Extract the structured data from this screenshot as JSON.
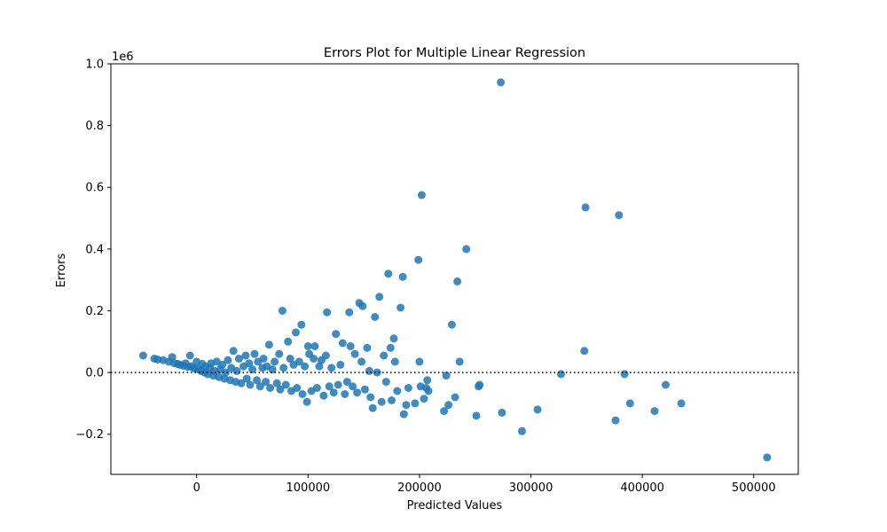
{
  "chart_data": {
    "type": "scatter",
    "title": "Errors Plot for Multiple Linear Regression",
    "xlabel": "Predicted Values",
    "ylabel": "Errors",
    "y_offset_label": "1e6",
    "xlim": [
      -77000,
      540000
    ],
    "ylim": [
      -0.33,
      1.0
    ],
    "x_ticks": [
      0,
      100000,
      200000,
      300000,
      400000,
      500000
    ],
    "x_tick_labels": [
      "0",
      "100000",
      "200000",
      "300000",
      "400000",
      "500000"
    ],
    "y_ticks": [
      -0.2,
      0.0,
      0.2,
      0.4,
      0.6,
      0.8,
      1.0
    ],
    "y_tick_labels": [
      "−0.2",
      "0.0",
      "0.2",
      "0.4",
      "0.6",
      "0.8",
      "1.0"
    ],
    "y_scale_note": "y values in units of 1e6",
    "grid": false,
    "reference_line": {
      "y": 0.0,
      "style": "dotted",
      "color": "#000000"
    },
    "point_color": "#1f77b4",
    "series": [
      {
        "points": [
          [
            -48000,
            0.055
          ],
          [
            -38000,
            0.045
          ],
          [
            -35000,
            0.042
          ],
          [
            -30000,
            0.04
          ],
          [
            -25000,
            0.035
          ],
          [
            -22000,
            0.05
          ],
          [
            -20000,
            0.03
          ],
          [
            -17000,
            0.028
          ],
          [
            -15000,
            0.025
          ],
          [
            -12000,
            0.022
          ],
          [
            -10000,
            0.03
          ],
          [
            -8000,
            0.018
          ],
          [
            -6000,
            0.055
          ],
          [
            -5000,
            0.02
          ],
          [
            -3000,
            0.015
          ],
          [
            -1000,
            0.012
          ],
          [
            0,
            0.035
          ],
          [
            2000,
            0.01
          ],
          [
            4000,
            0.005
          ],
          [
            5000,
            0.028
          ],
          [
            7000,
            0.0
          ],
          [
            8000,
            0.02
          ],
          [
            10000,
            -0.005
          ],
          [
            12000,
            0.015
          ],
          [
            13000,
            0.03
          ],
          [
            15000,
            -0.01
          ],
          [
            16000,
            0.005
          ],
          [
            18000,
            0.035
          ],
          [
            20000,
            -0.015
          ],
          [
            21000,
            0.01
          ],
          [
            23000,
            0.025
          ],
          [
            25000,
            -0.02
          ],
          [
            26000,
            0.0
          ],
          [
            28000,
            0.04
          ],
          [
            30000,
            -0.025
          ],
          [
            31000,
            0.015
          ],
          [
            33000,
            0.07
          ],
          [
            35000,
            -0.03
          ],
          [
            36000,
            0.005
          ],
          [
            38000,
            0.045
          ],
          [
            40000,
            -0.035
          ],
          [
            42000,
            0.02
          ],
          [
            44000,
            0.055
          ],
          [
            45000,
            -0.02
          ],
          [
            47000,
            0.03
          ],
          [
            48000,
            -0.04
          ],
          [
            50000,
            0.01
          ],
          [
            52000,
            0.06
          ],
          [
            54000,
            -0.025
          ],
          [
            55000,
            0.035
          ],
          [
            57000,
            -0.045
          ],
          [
            59000,
            0.015
          ],
          [
            60000,
            0.045
          ],
          [
            62000,
            -0.03
          ],
          [
            63000,
            0.02
          ],
          [
            65000,
            0.09
          ],
          [
            66000,
            -0.05
          ],
          [
            68000,
            0.01
          ],
          [
            70000,
            0.035
          ],
          [
            72000,
            -0.035
          ],
          [
            74000,
            0.06
          ],
          [
            75000,
            -0.055
          ],
          [
            77000,
            0.2
          ],
          [
            78000,
            0.015
          ],
          [
            80000,
            -0.04
          ],
          [
            82000,
            0.1
          ],
          [
            84000,
            0.045
          ],
          [
            85000,
            -0.06
          ],
          [
            87000,
            0.025
          ],
          [
            89000,
            0.13
          ],
          [
            90000,
            -0.05
          ],
          [
            92000,
            0.035
          ],
          [
            94000,
            0.155
          ],
          [
            95000,
            -0.07
          ],
          [
            97000,
            0.02
          ],
          [
            99000,
            -0.095
          ],
          [
            100000,
            0.085
          ],
          [
            101000,
            0.06
          ],
          [
            103000,
            -0.06
          ],
          [
            105000,
            0.045
          ],
          [
            106000,
            0.085
          ],
          [
            108000,
            -0.05
          ],
          [
            110000,
            0.02
          ],
          [
            112000,
            0.04
          ],
          [
            114000,
            -0.075
          ],
          [
            116000,
            0.055
          ],
          [
            117000,
            0.195
          ],
          [
            119000,
            -0.045
          ],
          [
            121000,
            0.015
          ],
          [
            123000,
            -0.065
          ],
          [
            125000,
            0.125
          ],
          [
            127000,
            -0.04
          ],
          [
            129000,
            0.025
          ],
          [
            131000,
            0.095
          ],
          [
            133000,
            -0.07
          ],
          [
            135000,
            -0.03
          ],
          [
            137000,
            0.195
          ],
          [
            138000,
            0.085
          ],
          [
            140000,
            -0.045
          ],
          [
            142000,
            0.06
          ],
          [
            144000,
            -0.065
          ],
          [
            146000,
            0.225
          ],
          [
            148000,
            0.035
          ],
          [
            149000,
            0.215
          ],
          [
            151000,
            -0.055
          ],
          [
            153000,
            0.08
          ],
          [
            155000,
            0.005
          ],
          [
            156000,
            -0.08
          ],
          [
            158000,
            -0.115
          ],
          [
            160000,
            0.18
          ],
          [
            162000,
            0.0
          ],
          [
            164000,
            0.245
          ],
          [
            166000,
            -0.095
          ],
          [
            168000,
            0.055
          ],
          [
            170000,
            -0.03
          ],
          [
            172000,
            0.32
          ],
          [
            174000,
            0.08
          ],
          [
            175000,
            -0.09
          ],
          [
            177000,
            0.11
          ],
          [
            178000,
            0.035
          ],
          [
            180000,
            -0.06
          ],
          [
            183000,
            0.21
          ],
          [
            185000,
            0.31
          ],
          [
            186000,
            -0.135
          ],
          [
            188000,
            -0.105
          ],
          [
            190000,
            -0.05
          ],
          [
            196000,
            -0.1
          ],
          [
            199000,
            0.365
          ],
          [
            200000,
            0.035
          ],
          [
            201000,
            -0.045
          ],
          [
            202000,
            0.575
          ],
          [
            204000,
            -0.085
          ],
          [
            206000,
            -0.05
          ],
          [
            207000,
            -0.025
          ],
          [
            208000,
            -0.06
          ],
          [
            222000,
            -0.125
          ],
          [
            224000,
            -0.01
          ],
          [
            226000,
            -0.105
          ],
          [
            229000,
            0.155
          ],
          [
            232000,
            -0.08
          ],
          [
            234000,
            0.295
          ],
          [
            236000,
            0.035
          ],
          [
            242000,
            0.4
          ],
          [
            251000,
            -0.14
          ],
          [
            253000,
            -0.045
          ],
          [
            254000,
            -0.04
          ],
          [
            273000,
            0.94
          ],
          [
            274000,
            -0.13
          ],
          [
            292000,
            -0.19
          ],
          [
            306000,
            -0.12
          ],
          [
            327000,
            -0.005
          ],
          [
            348000,
            0.07
          ],
          [
            349000,
            0.535
          ],
          [
            376000,
            -0.155
          ],
          [
            379000,
            0.51
          ],
          [
            384000,
            -0.005
          ],
          [
            389000,
            -0.1
          ],
          [
            411000,
            -0.125
          ],
          [
            421000,
            -0.04
          ],
          [
            435000,
            -0.1
          ],
          [
            512000,
            -0.275
          ]
        ]
      }
    ]
  }
}
